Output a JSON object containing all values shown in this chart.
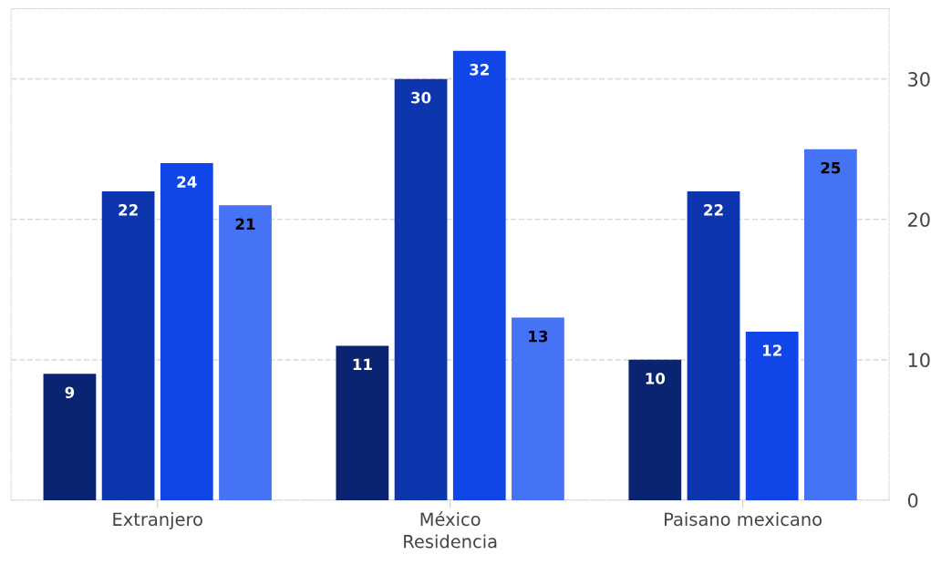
{
  "chart_data": {
    "type": "bar",
    "xlabel": "Residencia",
    "categories": [
      "Extranjero",
      "México",
      "Paisano mexicano"
    ],
    "series": [
      {
        "color": "#0a2472",
        "values": [
          9,
          11,
          10
        ]
      },
      {
        "color": "#0d35ad",
        "values": [
          22,
          30,
          22
        ]
      },
      {
        "color": "#1046e8",
        "values": [
          24,
          32,
          12
        ]
      },
      {
        "color": "#4673f5",
        "values": [
          21,
          13,
          25
        ]
      }
    ],
    "ylim": [
      0,
      35
    ],
    "yticks": [
      0,
      10,
      20,
      30
    ],
    "grid": "y",
    "data_labels": true,
    "legend": false
  }
}
